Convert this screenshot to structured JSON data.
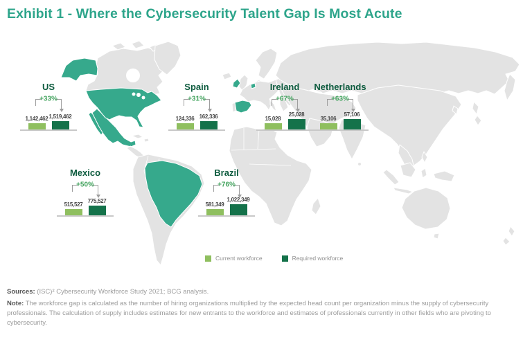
{
  "title": "Exhibit 1 - Where the Cybersecurity Talent Gap Is Most Acute",
  "colors": {
    "title_teal": "#2EA58B",
    "map_highlight": "#36A98C",
    "map_land": "#E3E3E3",
    "country_label_green": "#0D5B3E",
    "pct_green": "#44A45F",
    "bar_current": "#8FBF5F",
    "bar_required": "#14724A",
    "value_text": "#454545",
    "bracket_gray": "#9E9E9E",
    "baseline_gray": "#C8C8C8",
    "legend_text": "#8F8F8F",
    "footer_label": "#555555",
    "footer_text": "#9B9B9B"
  },
  "chart_data": {
    "type": "bar",
    "title": "Exhibit 1 - Where the Cybersecurity Talent Gap Is Most Acute",
    "legend": [
      {
        "label": "Current workforce",
        "color": "#8FBF5F"
      },
      {
        "label": "Required workforce",
        "color": "#14724A"
      }
    ],
    "highlighted_countries": [
      "US",
      "Mexico",
      "Brazil",
      "Spain",
      "Ireland",
      "Netherlands"
    ],
    "countries": [
      {
        "name": "US",
        "growth_pct": "+33%",
        "current_label": "1,142,462",
        "required_label": "1,519,462",
        "current": 1142462,
        "required": 1519462
      },
      {
        "name": "Spain",
        "growth_pct": "+31%",
        "current_label": "124,336",
        "required_label": "162,336",
        "current": 124336,
        "required": 162336
      },
      {
        "name": "Ireland",
        "growth_pct": "+67%",
        "current_label": "15,028",
        "required_label": "25,028",
        "current": 15028,
        "required": 25028
      },
      {
        "name": "Netherlands",
        "growth_pct": "+63%",
        "current_label": "35,106",
        "required_label": "57,106",
        "current": 35106,
        "required": 57106
      },
      {
        "name": "Mexico",
        "growth_pct": "+50%",
        "current_label": "515,527",
        "required_label": "775,527",
        "current": 515527,
        "required": 775527
      },
      {
        "name": "Brazil",
        "growth_pct": "+76%",
        "current_label": "581,349",
        "required_label": "1,022,349",
        "current": 581349,
        "required": 1022349
      }
    ]
  },
  "legend": {
    "current": "Current workforce",
    "required": "Required workforce"
  },
  "footer": {
    "sources_label": "Sources:",
    "sources_text": " (ISC)² Cybersecurity Workforce Study 2021; BCG analysis.",
    "note_label": "Note:",
    "note_text": " The workforce gap is calculated as the number of hiring organizations multiplied by the expected head count per organization minus the supply of cybersecurity professionals. The calculation of supply includes estimates for new entrants to the workforce and estimates of professionals currently in other fields who are pivoting to cybersecurity."
  }
}
